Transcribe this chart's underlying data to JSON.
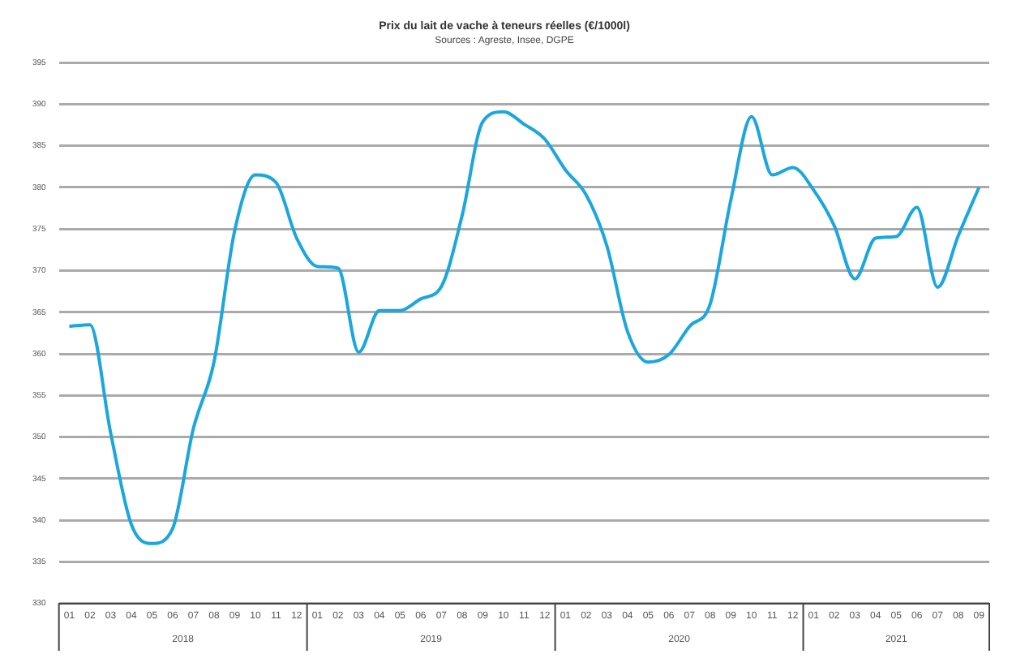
{
  "chart_data": {
    "type": "line",
    "title": "Prix du lait de vache à teneurs réelles (€/1000l)",
    "subtitle": "Sources : Agreste, Insee, DGPE",
    "categories": [
      "01",
      "02",
      "03",
      "04",
      "05",
      "06",
      "07",
      "08",
      "09",
      "10",
      "11",
      "12",
      "01",
      "02",
      "03",
      "04",
      "05",
      "06",
      "07",
      "08",
      "09",
      "10",
      "11",
      "12",
      "01",
      "02",
      "03",
      "04",
      "05",
      "06",
      "07",
      "08",
      "09",
      "10",
      "11",
      "12",
      "01",
      "02",
      "03",
      "04",
      "05",
      "06",
      "07",
      "08",
      "09"
    ],
    "annotations": [
      "2018",
      "2019",
      "2020",
      "2021"
    ],
    "series": [
      {
        "color": "#1ba7dd",
        "values": [
          363.3,
          363.5,
          350.5,
          339.5,
          337.2,
          339,
          351,
          359,
          374.8,
          381.5,
          380.6,
          373.9,
          370.5,
          370.3,
          360.2,
          365.2,
          365.2,
          366.6,
          368.1,
          376.6,
          387.9,
          389.1,
          387.6,
          385.8,
          382.1,
          379.1,
          373,
          362.7,
          359,
          359.9,
          363.3,
          366,
          378.5,
          388.5,
          381.5,
          382.4,
          379.7,
          375.4,
          369,
          373.9,
          374.1,
          377.6,
          368,
          374.2,
          380
        ]
      }
    ],
    "ylim": [
      330,
      395
    ],
    "yticks": [
      330,
      335,
      340,
      345,
      350,
      355,
      360,
      365,
      370,
      375,
      380,
      385,
      390,
      395
    ],
    "grid": "y",
    "legend": false,
    "marker": "none",
    "line_style": "solid"
  }
}
